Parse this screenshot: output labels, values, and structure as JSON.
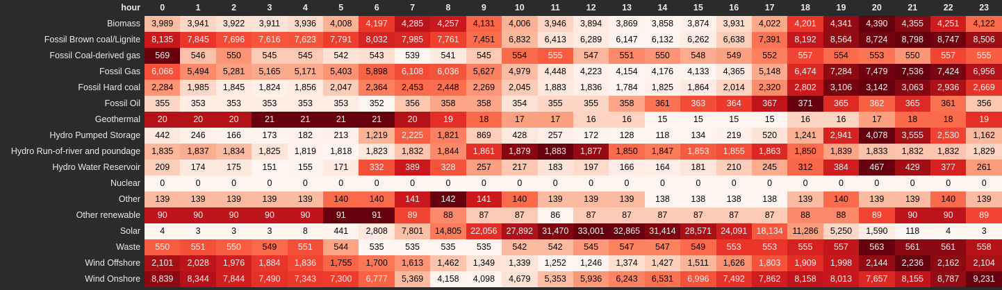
{
  "chart_data": {
    "type": "heatmap",
    "index_label": "hour",
    "columns": [
      0,
      1,
      2,
      3,
      4,
      5,
      6,
      7,
      8,
      9,
      10,
      11,
      12,
      13,
      14,
      15,
      16,
      17,
      18,
      19,
      20,
      21,
      22,
      23
    ],
    "rows": [
      "Biomass",
      "Fossil Brown coal/Lignite",
      "Fossil Coal-derived gas",
      "Fossil Gas",
      "Fossil Hard coal",
      "Fossil Oil",
      "Geothermal",
      "Hydro Pumped Storage",
      "Hydro Run-of-river and poundage",
      "Hydro Water Reservoir",
      "Nuclear",
      "Other",
      "Other renewable",
      "Solar",
      "Waste",
      "Wind Offshore",
      "Wind Onshore"
    ],
    "values": [
      [
        3989,
        3941,
        3922,
        3911,
        3936,
        4008,
        4197,
        4285,
        4257,
        4131,
        4006,
        3946,
        3894,
        3869,
        3858,
        3874,
        3931,
        4022,
        4201,
        4341,
        4390,
        4355,
        4251,
        4122
      ],
      [
        8135,
        7845,
        7696,
        7616,
        7623,
        7791,
        8032,
        7985,
        7761,
        7451,
        6832,
        6413,
        6289,
        6147,
        6132,
        6262,
        6638,
        7391,
        8192,
        8564,
        8724,
        8798,
        8747,
        8506
      ],
      [
        569,
        546,
        550,
        545,
        545,
        542,
        543,
        539,
        541,
        545,
        554,
        555,
        547,
        551,
        550,
        548,
        549,
        552,
        557,
        554,
        553,
        550,
        557,
        555
      ],
      [
        6066,
        5494,
        5281,
        5165,
        5171,
        5403,
        5898,
        6108,
        6036,
        5627,
        4979,
        4448,
        4223,
        4154,
        4176,
        4133,
        4365,
        5148,
        6474,
        7284,
        7479,
        7536,
        7424,
        6956
      ],
      [
        2284,
        1985,
        1845,
        1824,
        1856,
        2047,
        2364,
        2453,
        2448,
        2269,
        2045,
        1883,
        1836,
        1784,
        1825,
        1864,
        2014,
        2320,
        2802,
        3106,
        3142,
        3063,
        2936,
        2669
      ],
      [
        355,
        353,
        353,
        353,
        353,
        353,
        352,
        356,
        358,
        358,
        354,
        355,
        355,
        358,
        361,
        363,
        364,
        367,
        371,
        365,
        362,
        365,
        361,
        356
      ],
      [
        20,
        20,
        20,
        21,
        21,
        21,
        21,
        20,
        19,
        18,
        17,
        17,
        16,
        16,
        15,
        15,
        15,
        15,
        16,
        16,
        17,
        18,
        18,
        19
      ],
      [
        442,
        246,
        166,
        173,
        182,
        213,
        1219,
        2225,
        1821,
        869,
        428,
        257,
        172,
        128,
        118,
        134,
        219,
        520,
        1241,
        2941,
        4078,
        3555,
        2530,
        1162
      ],
      [
        1835,
        1837,
        1834,
        1825,
        1819,
        1818,
        1823,
        1832,
        1844,
        1861,
        1879,
        1883,
        1877,
        1850,
        1847,
        1853,
        1855,
        1863,
        1850,
        1839,
        1833,
        1832,
        1832,
        1829
      ],
      [
        209,
        174,
        175,
        151,
        155,
        171,
        332,
        389,
        328,
        257,
        217,
        183,
        197,
        166,
        164,
        181,
        210,
        245,
        312,
        384,
        467,
        429,
        377,
        261
      ],
      [
        0,
        0,
        0,
        0,
        0,
        0,
        0,
        0,
        0,
        0,
        0,
        0,
        0,
        0,
        0,
        0,
        0,
        0,
        0,
        0,
        0,
        0,
        0,
        0
      ],
      [
        139,
        139,
        139,
        139,
        139,
        140,
        140,
        141,
        142,
        141,
        140,
        139,
        139,
        139,
        138,
        138,
        138,
        138,
        139,
        140,
        139,
        139,
        140,
        139
      ],
      [
        90,
        90,
        90,
        90,
        90,
        91,
        91,
        89,
        88,
        87,
        87,
        86,
        87,
        87,
        87,
        87,
        87,
        87,
        88,
        88,
        89,
        90,
        90,
        89
      ],
      [
        4,
        3,
        3,
        3,
        8,
        441,
        2808,
        7801,
        14805,
        22056,
        27892,
        31470,
        33001,
        32865,
        31414,
        28571,
        24091,
        18134,
        11286,
        5250,
        1590,
        118,
        4,
        3
      ],
      [
        550,
        551,
        550,
        549,
        551,
        544,
        535,
        535,
        535,
        535,
        542,
        542,
        545,
        547,
        547,
        549,
        553,
        553,
        555,
        557,
        563,
        561,
        561,
        558
      ],
      [
        2101,
        2028,
        1976,
        1884,
        1836,
        1755,
        1700,
        1613,
        1462,
        1349,
        1339,
        1252,
        1246,
        1374,
        1427,
        1511,
        1626,
        1803,
        1909,
        1998,
        2144,
        2236,
        2162,
        2104
      ],
      [
        8839,
        8344,
        7844,
        7490,
        7343,
        7300,
        6777,
        5369,
        4158,
        4098,
        4679,
        5353,
        5936,
        6243,
        6531,
        6996,
        7492,
        7862,
        8158,
        8013,
        7657,
        8155,
        8787,
        9231
      ]
    ],
    "colormap": "Reds",
    "color_scale": "per-row"
  }
}
